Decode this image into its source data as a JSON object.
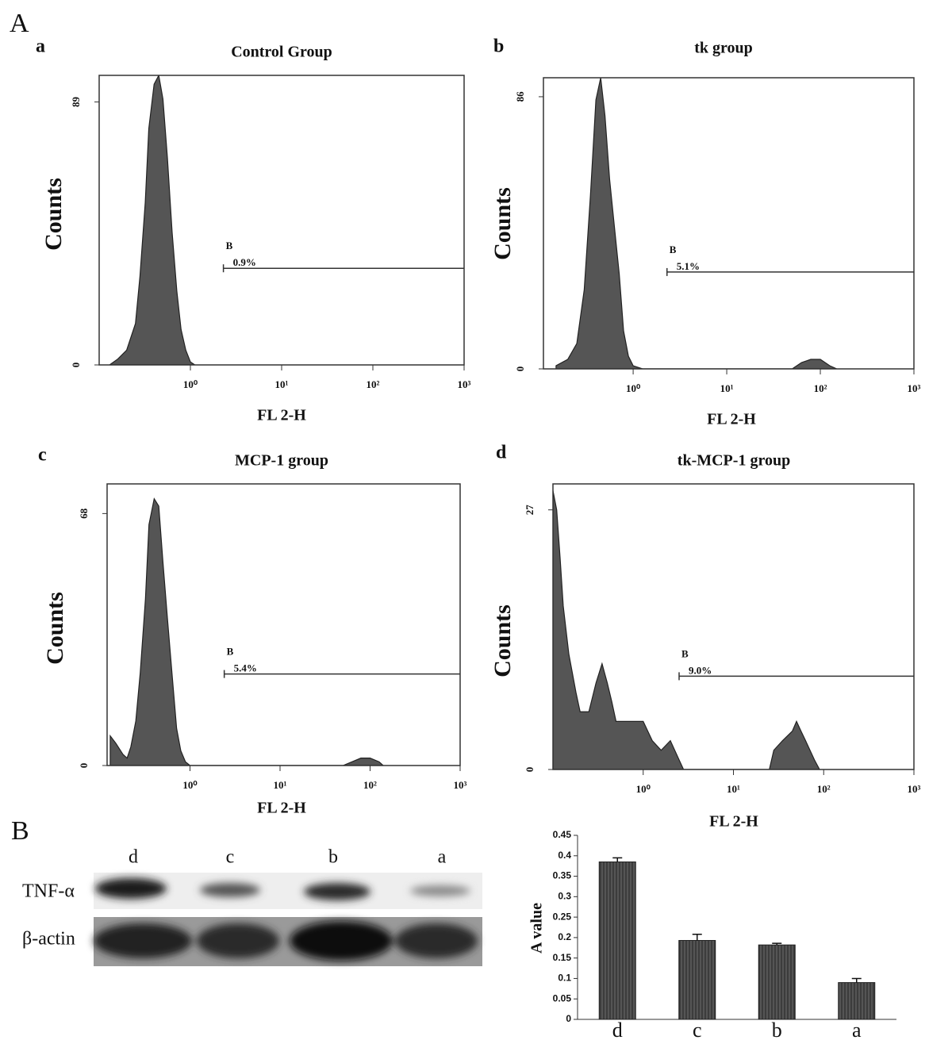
{
  "sections": [
    "A",
    "B"
  ],
  "blot": {
    "lanes": [
      "d",
      "c",
      "b",
      "a"
    ],
    "rows": [
      "TNF-α",
      "β-actin"
    ]
  },
  "chart_data": [
    {
      "type": "area",
      "panel": "a",
      "title": "Control Group",
      "xlabel": "FL 2-H",
      "ylabel": "Counts",
      "xscale": "log",
      "color": "#555555",
      "x": [
        0.13,
        0.16,
        0.2,
        0.25,
        0.28,
        0.32,
        0.35,
        0.4,
        0.45,
        0.5,
        0.56,
        0.63,
        0.71,
        0.79,
        0.89,
        1.0,
        1.12
      ],
      "values": [
        0,
        2,
        5,
        14,
        30,
        55,
        80,
        95,
        98,
        90,
        70,
        45,
        25,
        12,
        5,
        1,
        0
      ],
      "xlim": [
        0.1,
        1000
      ],
      "ylim": [
        0,
        98
      ],
      "xticks": [
        {
          "value": 1,
          "label": "10⁰"
        },
        {
          "value": 10,
          "label": "10¹"
        },
        {
          "value": 100,
          "label": "10²"
        },
        {
          "value": 1000,
          "label": "10³"
        }
      ],
      "yticks": [
        0,
        89
      ],
      "gate": {
        "label": "B",
        "percent": "0.9%",
        "x": [
          2.3,
          1000
        ],
        "y": 32.7
      }
    },
    {
      "type": "area",
      "panel": "b",
      "title": "tk group",
      "xlabel": "FL 2-H",
      "ylabel": "Counts",
      "xscale": "log",
      "color": "#555555",
      "x": [
        0.15,
        0.2,
        0.25,
        0.3,
        0.35,
        0.4,
        0.45,
        0.5,
        0.56,
        0.63,
        0.71,
        0.79,
        0.89,
        1.0,
        1.26,
        50,
        63,
        79,
        100,
        126,
        150
      ],
      "values": [
        1,
        3,
        8,
        25,
        55,
        85,
        92,
        80,
        60,
        45,
        30,
        12,
        4,
        1,
        0,
        0,
        2,
        3,
        3,
        1,
        0
      ],
      "xlim": [
        0.11,
        1000
      ],
      "ylim": [
        0,
        92
      ],
      "xticks": [
        {
          "value": 1,
          "label": "10⁰"
        },
        {
          "value": 10,
          "label": "10¹"
        },
        {
          "value": 100,
          "label": "10²"
        },
        {
          "value": 1000,
          "label": "10³"
        }
      ],
      "yticks": [
        0,
        86
      ],
      "gate": {
        "label": "B",
        "percent": "5.1%",
        "x": [
          2.3,
          1000
        ],
        "y": 30.6
      }
    },
    {
      "type": "area",
      "panel": "c",
      "title": "MCP-1 group",
      "xlabel": "FL 2-H",
      "ylabel": "Counts",
      "xscale": "log",
      "color": "#555555",
      "x": [
        0.13,
        0.15,
        0.18,
        0.2,
        0.22,
        0.25,
        0.28,
        0.32,
        0.35,
        0.4,
        0.45,
        0.5,
        0.56,
        0.63,
        0.71,
        0.79,
        0.89,
        1.0,
        50,
        63,
        79,
        100,
        126,
        140
      ],
      "values": [
        8,
        6,
        3,
        2,
        5,
        12,
        25,
        45,
        65,
        72,
        70,
        55,
        40,
        25,
        10,
        4,
        1,
        0,
        0,
        1,
        2,
        2,
        1,
        0
      ],
      "xlim": [
        0.12,
        1000
      ],
      "ylim": [
        0,
        76
      ],
      "xticks": [
        {
          "value": 1,
          "label": "10⁰"
        },
        {
          "value": 10,
          "label": "10¹"
        },
        {
          "value": 100,
          "label": "10²"
        },
        {
          "value": 1000,
          "label": "10³"
        }
      ],
      "yticks": [
        0,
        68
      ],
      "gate": {
        "label": "B",
        "percent": "5.4%",
        "x": [
          2.4,
          1000
        ],
        "y": 24.7
      }
    },
    {
      "type": "area",
      "panel": "d",
      "title": "tk-MCP-1 group",
      "xlabel": "FL 2-H",
      "ylabel": "Counts",
      "xscale": "log",
      "color": "#555555",
      "x": [
        0.1,
        0.11,
        0.12,
        0.13,
        0.15,
        0.18,
        0.2,
        0.25,
        0.3,
        0.35,
        0.4,
        0.45,
        0.5,
        0.63,
        0.79,
        1.0,
        1.26,
        1.58,
        2.0,
        2.5,
        2.8,
        25,
        28,
        35,
        45,
        50,
        56,
        63,
        79,
        90
      ],
      "values": [
        29,
        27,
        22,
        17,
        12,
        8,
        6,
        6,
        9,
        11,
        9,
        7,
        5,
        5,
        5,
        5,
        3,
        2,
        3,
        1,
        0,
        0,
        2,
        3,
        4,
        5,
        4,
        3,
        1,
        0
      ],
      "xlim": [
        0.1,
        1000
      ],
      "ylim": [
        0,
        29.7
      ],
      "xticks": [
        {
          "value": 1,
          "label": "10⁰"
        },
        {
          "value": 10,
          "label": "10¹"
        },
        {
          "value": 100,
          "label": "10²"
        },
        {
          "value": 1000,
          "label": "10³"
        }
      ],
      "yticks": [
        0,
        27
      ],
      "gate": {
        "label": "B",
        "percent": "9.0%",
        "x": [
          2.5,
          1000
        ],
        "y": 9.7
      }
    },
    {
      "type": "bar",
      "ylabel": "A value",
      "color": "#444444",
      "categories": [
        "d",
        "c",
        "b",
        "a"
      ],
      "values": [
        0.385,
        0.193,
        0.182,
        0.09
      ],
      "errors": [
        0.01,
        0.015,
        0.004,
        0.01
      ],
      "ylim": [
        0,
        0.45
      ],
      "yticks": [
        0,
        0.05,
        0.1,
        0.15,
        0.2,
        0.25,
        0.3,
        0.35,
        0.4,
        0.45
      ]
    }
  ]
}
